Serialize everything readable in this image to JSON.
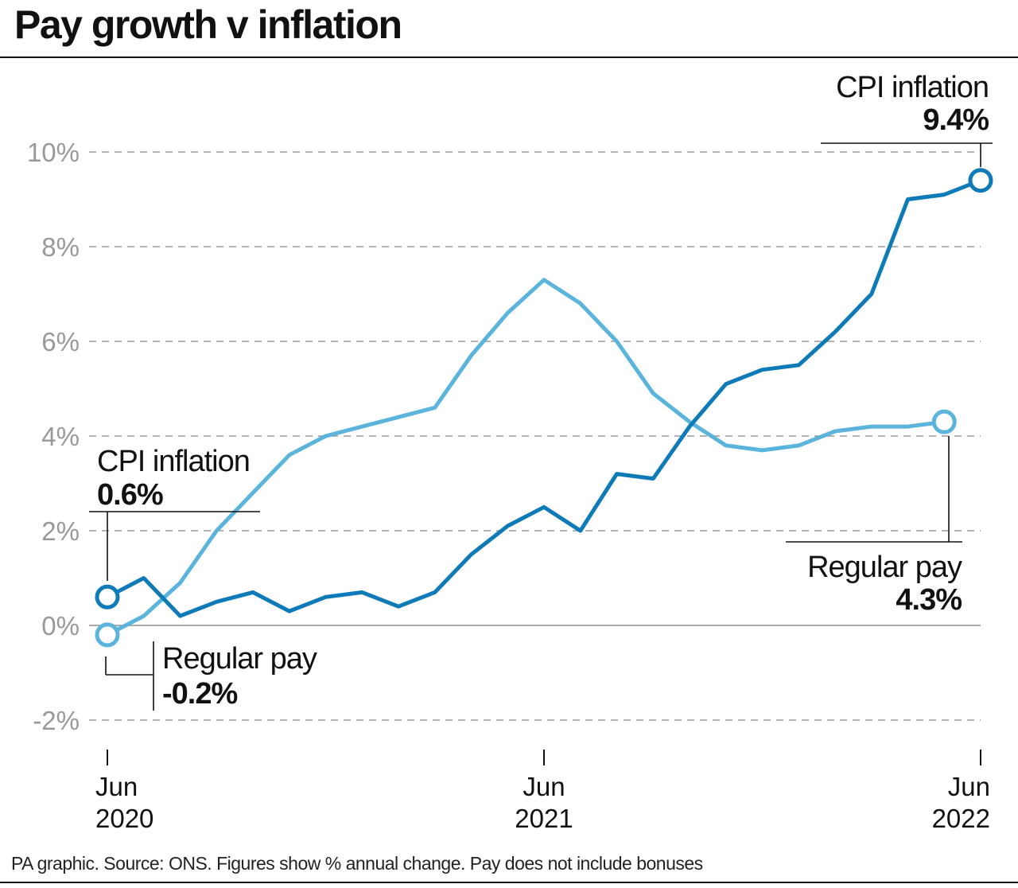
{
  "title": "Pay growth v inflation",
  "footer": "PA graphic. Source: ONS. Figures show % annual change. Pay does not include bonuses",
  "chart_data": {
    "type": "line",
    "title": "Pay growth v inflation",
    "ylim": [
      -2,
      10
    ],
    "yticks": [
      -2,
      0,
      2,
      4,
      6,
      8,
      10
    ],
    "ytick_labels": [
      "-2%",
      "0%",
      "2%",
      "4%",
      "6%",
      "8%",
      "10%"
    ],
    "xticks": [
      {
        "month": "Jun",
        "year": "2020"
      },
      {
        "month": "Jun",
        "year": "2021"
      },
      {
        "month": "Jun",
        "year": "2022"
      }
    ],
    "grid": true,
    "colors": {
      "cpi": "#0e7bb8",
      "pay": "#5ab4dc"
    },
    "series": [
      {
        "name": "CPI inflation",
        "start": "2020-06",
        "values": [
          0.6,
          1.0,
          0.2,
          0.5,
          0.7,
          0.3,
          0.6,
          0.7,
          0.4,
          0.7,
          1.5,
          2.1,
          2.5,
          2.0,
          3.2,
          3.1,
          4.2,
          5.1,
          5.4,
          5.5,
          6.2,
          7.0,
          9.0,
          9.1,
          9.4
        ]
      },
      {
        "name": "Regular pay",
        "start": "2020-06",
        "values": [
          -0.2,
          0.2,
          0.9,
          2.0,
          2.8,
          3.6,
          4.0,
          4.2,
          4.4,
          4.6,
          5.7,
          6.6,
          7.3,
          6.8,
          6.0,
          4.9,
          4.3,
          3.8,
          3.7,
          3.8,
          4.1,
          4.2,
          4.2,
          4.3
        ]
      }
    ],
    "annotations": [
      {
        "label": "CPI inflation",
        "value": "0.6%"
      },
      {
        "label": "Regular pay",
        "value": "-0.2%"
      },
      {
        "label": "CPI inflation",
        "value": "9.4%"
      },
      {
        "label": "Regular pay",
        "value": "4.3%"
      }
    ]
  }
}
